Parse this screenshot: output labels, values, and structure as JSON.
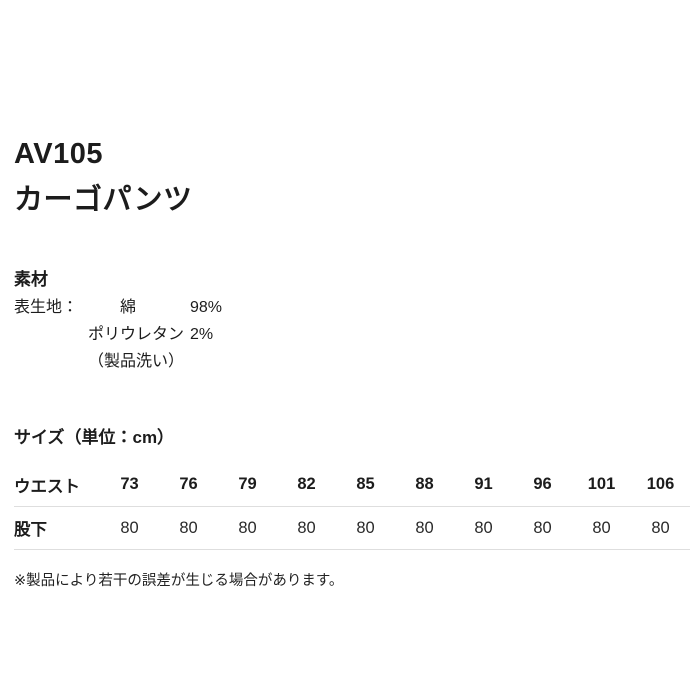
{
  "page": {
    "background": "#ffffff",
    "text_color": "#1c1c1c",
    "rule_color": "#dedede"
  },
  "product": {
    "code": "AV105",
    "name": "カーゴパンツ"
  },
  "material": {
    "heading": "素材",
    "label": "表生地：",
    "rows": [
      {
        "name": "綿",
        "percent": "98%"
      },
      {
        "name": "ポリウレタン",
        "percent": "2%"
      }
    ],
    "note": "（製品洗い）"
  },
  "size": {
    "heading": "サイズ（単位：cm）",
    "table": {
      "rows": [
        {
          "label": "ウエスト",
          "bold": true,
          "values": [
            "73",
            "76",
            "79",
            "82",
            "85",
            "88",
            "91",
            "96",
            "101",
            "106"
          ]
        },
        {
          "label": "股下",
          "bold": false,
          "values": [
            "80",
            "80",
            "80",
            "80",
            "80",
            "80",
            "80",
            "80",
            "80",
            "80"
          ]
        }
      ]
    }
  },
  "footnote": "※製品により若干の誤差が生じる場合があります。"
}
